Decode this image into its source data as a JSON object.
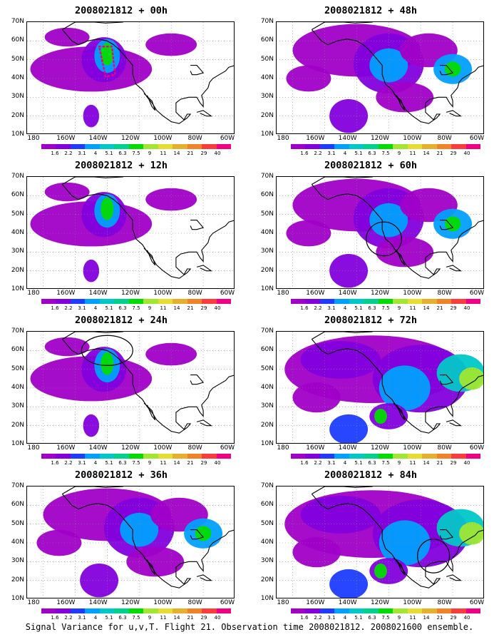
{
  "palette": [
    "#a000c8",
    "#8200dc",
    "#1e3cff",
    "#00a0ff",
    "#00c8c8",
    "#00d28c",
    "#00dc00",
    "#a0e632",
    "#e6dc32",
    "#e6af2d",
    "#f08228",
    "#fa3c3c",
    "#f00082"
  ],
  "land_color": "#ffffff",
  "panels": [
    {
      "title": "2008021812 + 00h",
      "y_labels": [
        "70N",
        "60N",
        "50N",
        "40N",
        "30N",
        "20N",
        "10N"
      ],
      "x_labels": [
        "180",
        "160W",
        "140W",
        "120W",
        "100W",
        "80W",
        "60W"
      ],
      "colorbar_labels": [
        "1.6",
        "2.2",
        "3.1",
        "4",
        "5.1",
        "6.3",
        "7.5",
        "9",
        "11",
        "14",
        "21",
        "29",
        "40"
      ],
      "intensity": "low",
      "annotation": "dotted-box"
    },
    {
      "title": "2008021812 + 48h",
      "y_labels": [
        "70N",
        "60N",
        "50N",
        "40N",
        "30N",
        "20N",
        "10N"
      ],
      "x_labels": [
        "180",
        "160W",
        "140W",
        "120W",
        "100W",
        "80W",
        "60W"
      ],
      "colorbar_labels": [
        "1.6",
        "2.2",
        "3.1",
        "4",
        "5.1",
        "6.3",
        "7.5",
        "9",
        "11",
        "14",
        "21",
        "29",
        "40"
      ],
      "intensity": "medium",
      "annotation": "none"
    },
    {
      "title": "2008021812 + 12h",
      "y_labels": [
        "70N",
        "60N",
        "50N",
        "40N",
        "30N",
        "20N",
        "10N"
      ],
      "x_labels": [
        "180",
        "160W",
        "140W",
        "120W",
        "100W",
        "80W",
        "60W"
      ],
      "colorbar_labels": [
        "1.6",
        "2.2",
        "3.1",
        "4",
        "5.1",
        "6.3",
        "7.5",
        "9",
        "11",
        "14",
        "21",
        "29",
        "40"
      ],
      "intensity": "low",
      "annotation": "none"
    },
    {
      "title": "2008021812 + 60h",
      "y_labels": [
        "70N",
        "60N",
        "50N",
        "40N",
        "30N",
        "20N",
        "10N"
      ],
      "x_labels": [
        "180",
        "160W",
        "140W",
        "120W",
        "100W",
        "80W",
        "60W"
      ],
      "colorbar_labels": [
        "1.6",
        "2.2",
        "3.1",
        "4",
        "5.1",
        "6.3",
        "7.5",
        "9",
        "11",
        "14",
        "21",
        "29",
        "40"
      ],
      "intensity": "medium",
      "annotation": "circle-west-coast"
    },
    {
      "title": "2008021812 + 24h",
      "y_labels": [
        "70N",
        "60N",
        "50N",
        "40N",
        "30N",
        "20N",
        "10N"
      ],
      "x_labels": [
        "180",
        "160W",
        "140W",
        "120W",
        "100W",
        "80W",
        "60W"
      ],
      "colorbar_labels": [
        "1.6",
        "2.2",
        "3.1",
        "4",
        "5.1",
        "6.3",
        "7.5",
        "9",
        "11",
        "14",
        "21",
        "29",
        "40"
      ],
      "intensity": "low",
      "annotation": "ellipse-alaska"
    },
    {
      "title": "2008021812 + 72h",
      "y_labels": [
        "70N",
        "60N",
        "50N",
        "40N",
        "30N",
        "20N",
        "10N"
      ],
      "x_labels": [
        "180",
        "160W",
        "140W",
        "120W",
        "100W",
        "80W",
        "60W"
      ],
      "colorbar_labels": [
        "1.6",
        "2.2",
        "3.1",
        "4",
        "5.1",
        "6.3",
        "7.5",
        "9",
        "11",
        "14",
        "21",
        "29",
        "40"
      ],
      "intensity": "high",
      "annotation": "none"
    },
    {
      "title": "2008021812 + 36h",
      "y_labels": [
        "70N",
        "60N",
        "50N",
        "40N",
        "30N",
        "20N",
        "10N"
      ],
      "x_labels": [
        "180",
        "160W",
        "140W",
        "120W",
        "100W",
        "80W",
        "60W"
      ],
      "colorbar_labels": [
        "1.6",
        "2.2",
        "3.1",
        "4",
        "5.1",
        "6.3",
        "7.5",
        "9",
        "11",
        "14",
        "21",
        "29",
        "40"
      ],
      "intensity": "medium",
      "annotation": "none"
    },
    {
      "title": "2008021812 + 84h",
      "y_labels": [
        "70N",
        "60N",
        "50N",
        "40N",
        "30N",
        "20N",
        "10N"
      ],
      "x_labels": [
        "180",
        "160W",
        "140W",
        "120W",
        "100W",
        "80W",
        "60W"
      ],
      "colorbar_labels": [
        "1.6",
        "2.2",
        "3.1",
        "4",
        "5.1",
        "6.3",
        "7.5",
        "9",
        "11",
        "14",
        "21",
        "29",
        "40"
      ],
      "intensity": "high",
      "annotation": "circle-gulf"
    }
  ],
  "footer": "Signal Variance for u,v,T. Flight 21. Observation time 2008021812. 2008021600 ensemble."
}
